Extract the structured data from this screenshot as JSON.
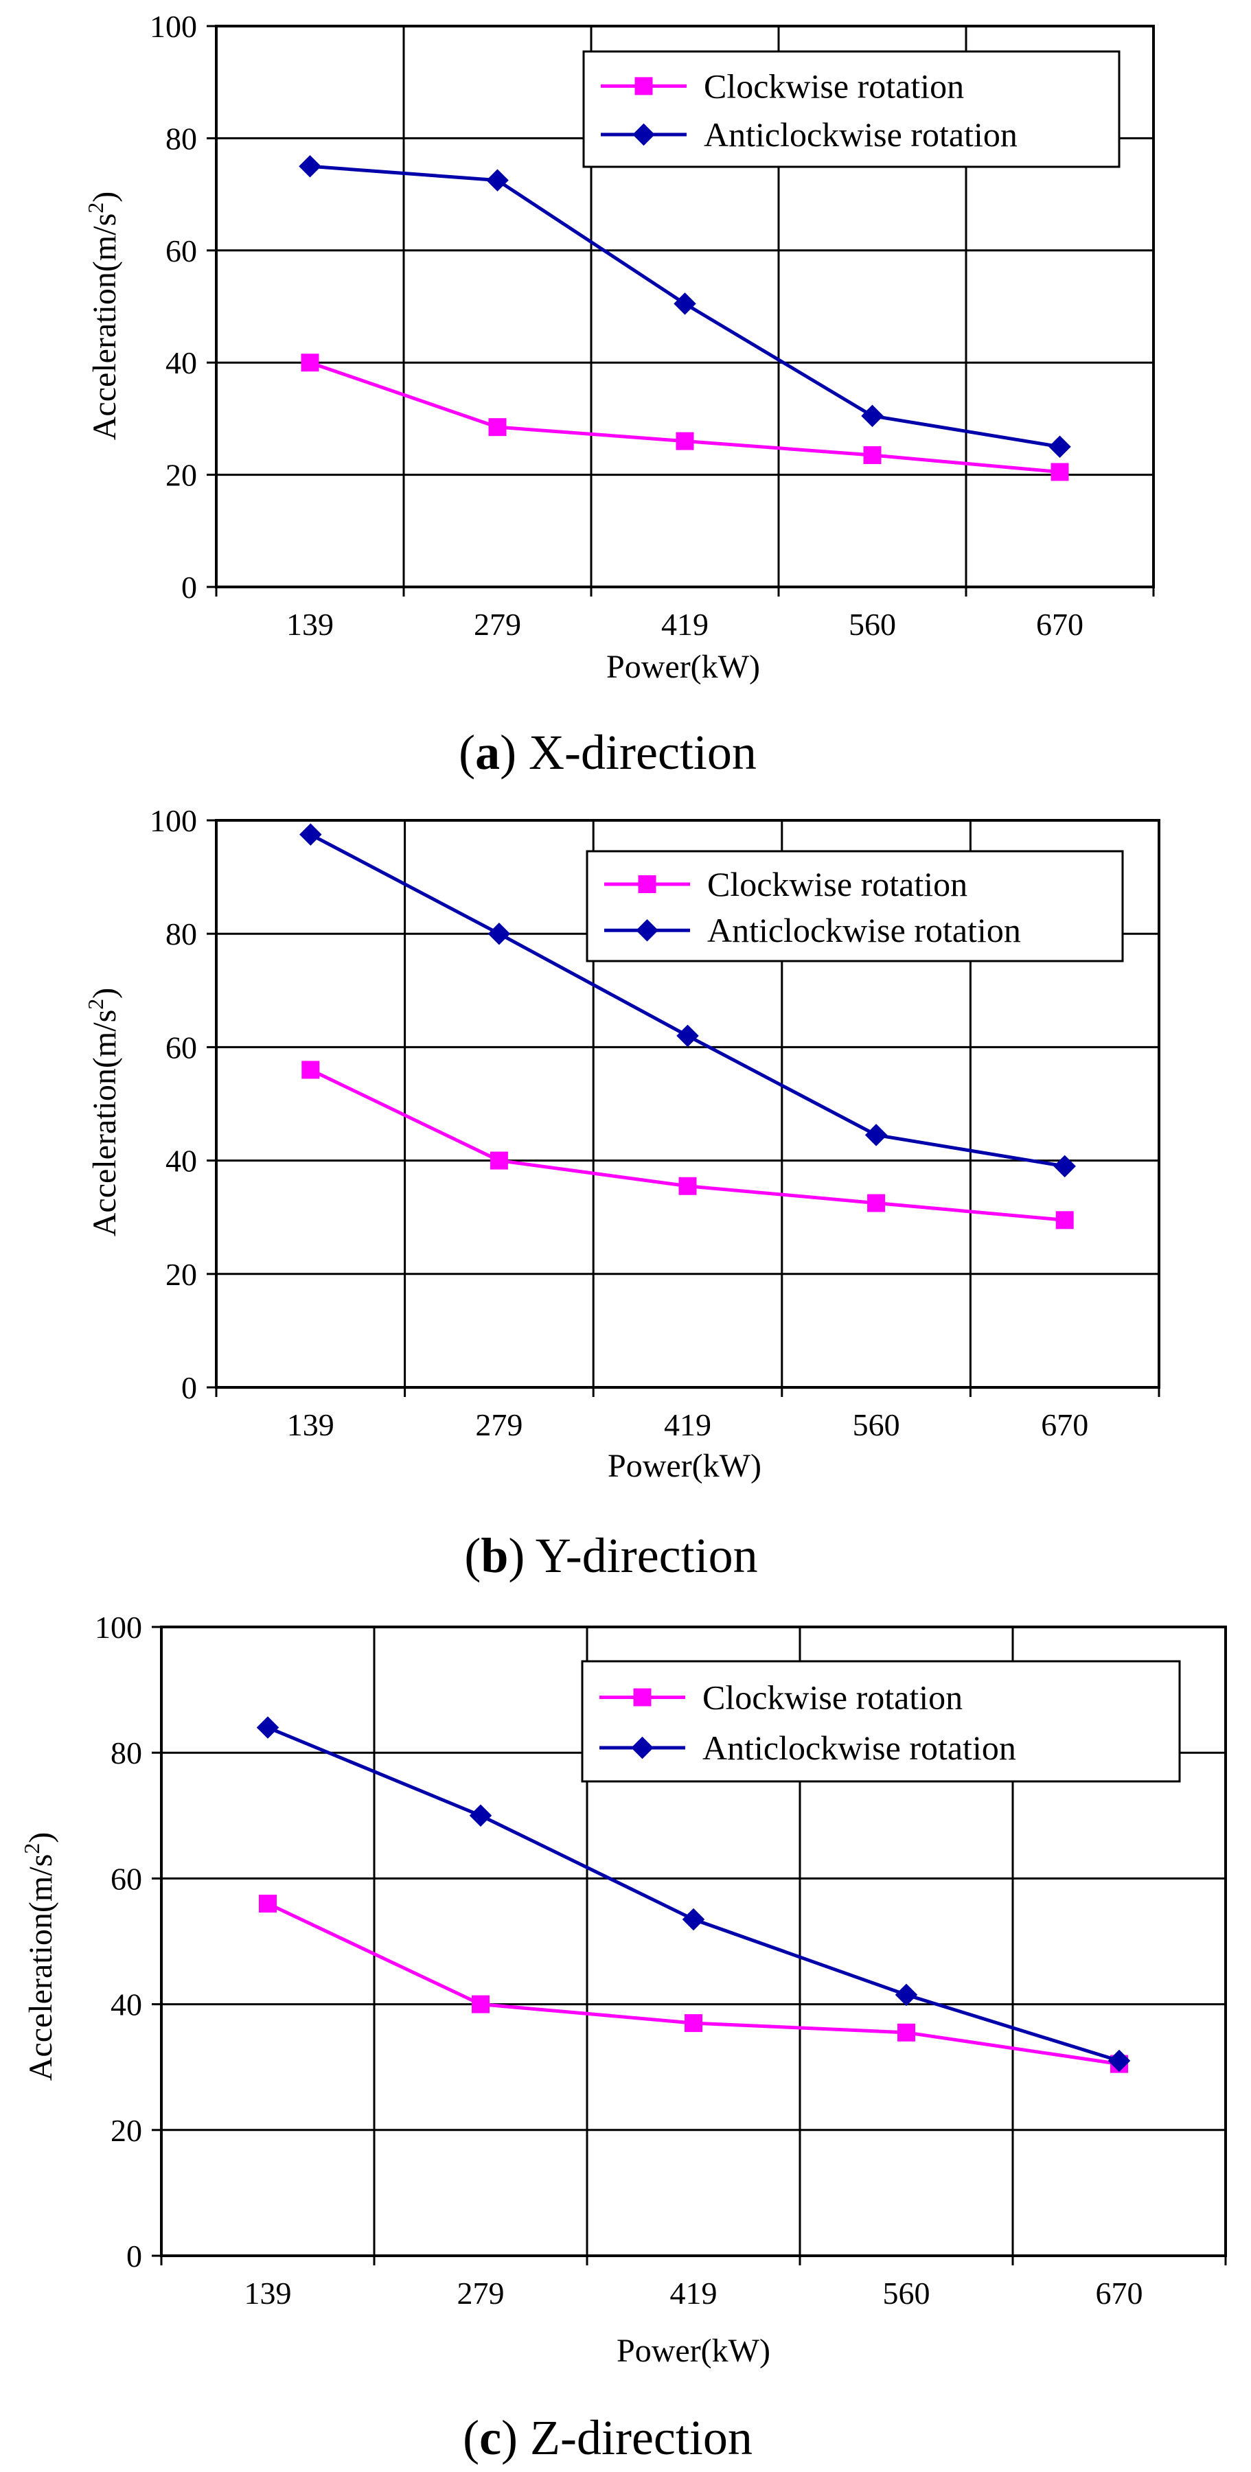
{
  "figure": {
    "panels": [
      {
        "caption_letter": "a",
        "caption_text": "X-direction"
      },
      {
        "caption_letter": "b",
        "caption_text": "Y-direction"
      },
      {
        "caption_letter": "c",
        "caption_text": "Z-direction"
      }
    ]
  },
  "colors": {
    "clockwise": "#FF00FF",
    "anticlockwise": "#0000AA",
    "axis": "#000000",
    "grid": "#000000"
  },
  "chart_data": [
    {
      "type": "line",
      "title": "(a) X-direction",
      "categories": [
        "139",
        "279",
        "419",
        "560",
        "670"
      ],
      "xlabel": "Power(kW)",
      "ylabel": "Acceleration(m/s2)",
      "ylim": [
        0,
        100
      ],
      "yticks": [
        0,
        20,
        40,
        60,
        80,
        100
      ],
      "grid": true,
      "legend": "top-right",
      "series": [
        {
          "name": "Clockwise rotation",
          "marker": "square",
          "values": [
            40,
            28.5,
            26,
            23.5,
            20.5
          ]
        },
        {
          "name": "Anticlockwise rotation",
          "marker": "diamond",
          "values": [
            75,
            72.5,
            50.5,
            30.5,
            25
          ]
        }
      ]
    },
    {
      "type": "line",
      "title": "(b) Y-direction",
      "categories": [
        "139",
        "279",
        "419",
        "560",
        "670"
      ],
      "xlabel": "Power(kW)",
      "ylabel": "Acceleration(m/s2)",
      "ylim": [
        0,
        100
      ],
      "yticks": [
        0,
        20,
        40,
        60,
        80,
        100
      ],
      "grid": true,
      "legend": "top-right",
      "series": [
        {
          "name": "Clockwise rotation",
          "marker": "square",
          "values": [
            56,
            40,
            35.5,
            32.5,
            29.5
          ]
        },
        {
          "name": "Anticlockwise rotation",
          "marker": "diamond",
          "values": [
            97.5,
            80,
            62,
            44.5,
            39
          ]
        }
      ]
    },
    {
      "type": "line",
      "title": "(c) Z-direction",
      "categories": [
        "139",
        "279",
        "419",
        "560",
        "670"
      ],
      "xlabel": "Power(kW)",
      "ylabel": "Acceleration(m/s2)",
      "ylim": [
        0,
        100
      ],
      "yticks": [
        0,
        20,
        40,
        60,
        80,
        100
      ],
      "grid": true,
      "legend": "top-right",
      "series": [
        {
          "name": "Clockwise rotation",
          "marker": "square",
          "values": [
            56,
            40,
            37,
            35.5,
            30.5
          ]
        },
        {
          "name": "Anticlockwise rotation",
          "marker": "diamond",
          "values": [
            84,
            70,
            53.5,
            41.5,
            31
          ]
        }
      ]
    }
  ]
}
